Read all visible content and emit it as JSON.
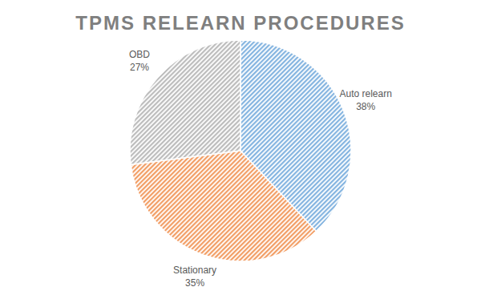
{
  "chart_data": {
    "type": "pie",
    "title": "TPMS RELEARN PROCEDURES",
    "categories": [
      "Auto relearn",
      "Stationary",
      "OBD"
    ],
    "values": [
      38,
      35,
      27
    ],
    "value_labels": [
      "38%",
      "35%",
      "27%"
    ],
    "colors": [
      "#5b9bd5",
      "#ed7d31",
      "#a5a5a5"
    ],
    "data_labels": true
  }
}
